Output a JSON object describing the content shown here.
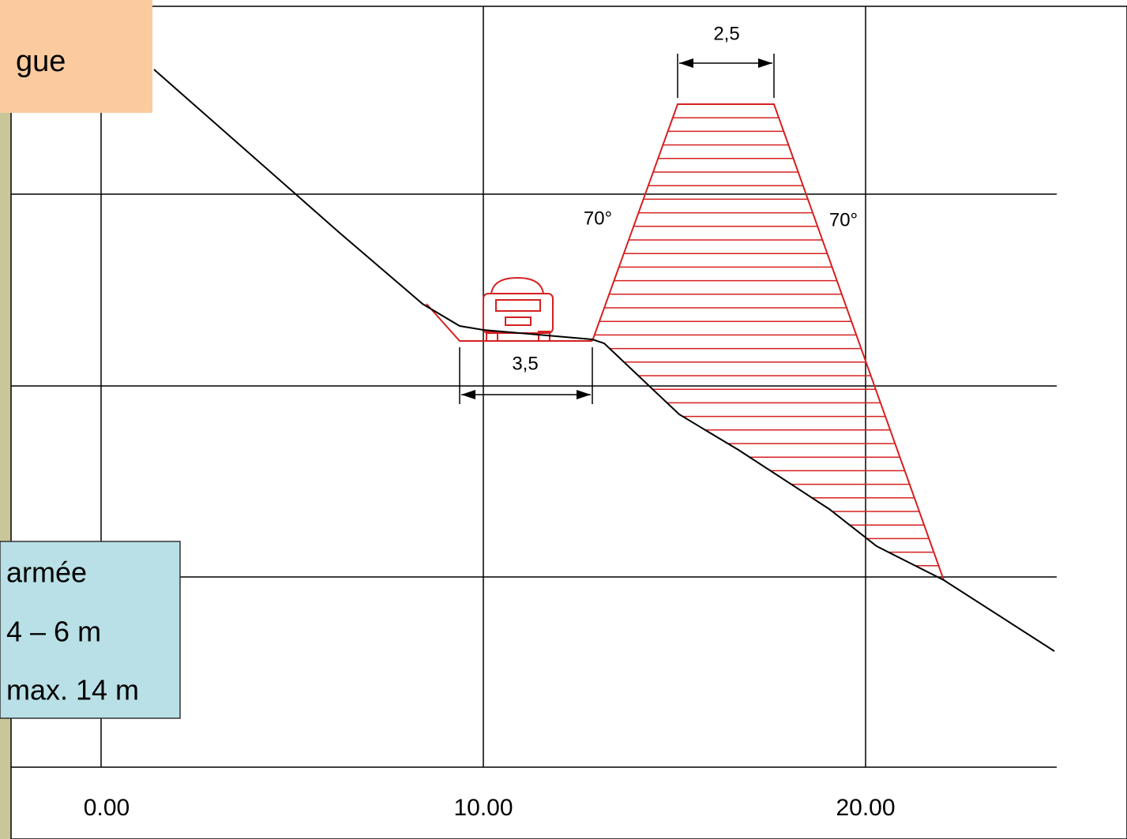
{
  "callout_top": {
    "text": "gue"
  },
  "callout_bottom": {
    "lines": [
      "armée",
      "4 – 6 m",
      "max. 14 m"
    ]
  },
  "dimensions": {
    "crest_width": "2,5",
    "road_width": "3,5",
    "angle_left": "70°",
    "angle_right": "70°"
  },
  "axis_labels": [
    "0.00",
    "10.00",
    "20.00"
  ]
}
